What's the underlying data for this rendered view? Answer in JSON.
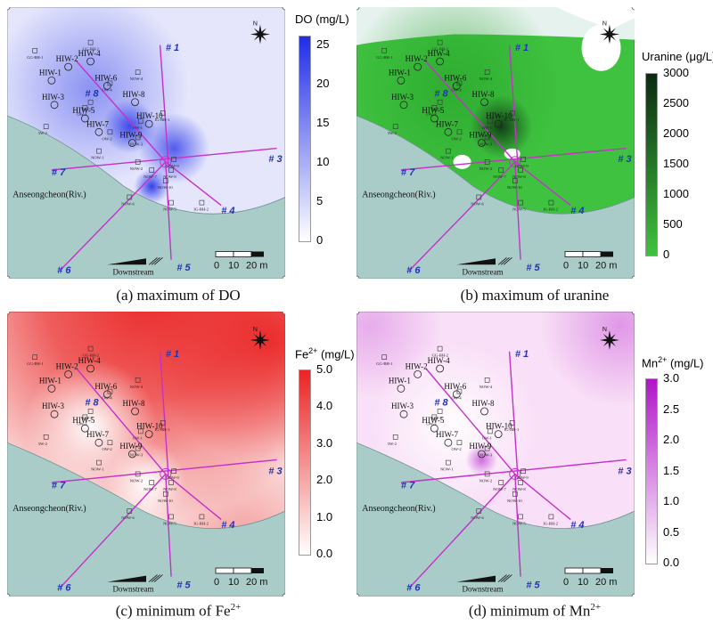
{
  "panels": [
    {
      "id": "a",
      "caption": "(a) maximum of DO",
      "legend_title": "DO (mg/L)",
      "legend_ticks": [
        "25",
        "20",
        "15",
        "10",
        "5",
        "0"
      ],
      "color_high": "#1f2de6",
      "color_low": "#ffffff",
      "base_tint": "#d7d9fb",
      "river_color": "#a9ccc8"
    },
    {
      "id": "b",
      "caption": "(b) maximum of uranine",
      "legend_title": "Uranine (μg/L)",
      "legend_ticks": [
        "3000",
        "2500",
        "2000",
        "1500",
        "1000",
        "500",
        "0"
      ],
      "color_high": "#0b2a10",
      "color_low": "#3fc23f",
      "base_tint": "#3fc23f",
      "river_color": "#a9ccc8"
    },
    {
      "id": "c",
      "caption_main": "(c) minimum of Fe",
      "caption_sup": "2+",
      "legend_title_main": "Fe",
      "legend_title_sup": "2+",
      "legend_title_unit": " (mg/L)",
      "legend_ticks": [
        "5.0",
        "4.0",
        "3.0",
        "2.0",
        "1.0",
        "0.0"
      ],
      "color_high": "#ea2323",
      "color_low": "#ffffff",
      "base_tint": "#fbe4e4",
      "river_color": "#a9ccc8"
    },
    {
      "id": "d",
      "caption_main": "(d) minimum of Mn",
      "caption_sup": "2+",
      "legend_title_main": "Mn",
      "legend_title_sup": "2+",
      "legend_title_unit": " (mg/L)",
      "legend_ticks": [
        "3.0",
        "2.5",
        "2.0",
        "1.5",
        "1.0",
        "0.5",
        "0.0"
      ],
      "color_high": "#b014c8",
      "color_low": "#ffffff",
      "base_tint": "#f6d2f4",
      "river_color": "#a9ccc8"
    }
  ],
  "map": {
    "river_label": "Anseongcheon(Riv.)",
    "downstream_label": "Downstream",
    "scale_labels": [
      "0",
      "10",
      "20 m"
    ],
    "line_color": "#c531c9",
    "line_label_color": "#2233bb",
    "line_labels": [
      "# 1",
      "# 3",
      "# 4",
      "# 5",
      "# 6",
      "# 7",
      "# 8"
    ],
    "wells_large": [
      "HIW-1",
      "HIW-2",
      "HIW-3",
      "HIW-4",
      "HIW-5",
      "HIW-6",
      "HIW-7",
      "HIW-8",
      "HIW-9",
      "HIW-10"
    ],
    "wells_small": [
      "GG-BH-1",
      "GG-BH-2",
      "NOW-4",
      "OW-5",
      "OW-4",
      "OW-3",
      "OW-2",
      "OW-1",
      "IG-BH-1",
      "NOW-3",
      "NOW-1",
      "NOW-2",
      "NOW-9",
      "NOW-7",
      "NOW-8",
      "NOW-10",
      "NOW-6",
      "NOW-5",
      "IG-BH-2",
      "3W-2"
    ]
  }
}
